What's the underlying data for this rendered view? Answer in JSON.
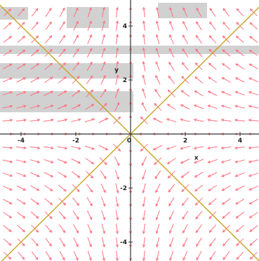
{
  "chart_data": {
    "type": "vector_field",
    "xlabel": "x",
    "ylabel": "y",
    "xlim": [
      -4.7,
      4.7
    ],
    "ylim": [
      -4.7,
      4.7
    ],
    "xticks": [
      -4,
      -2,
      0,
      2,
      4
    ],
    "yticks": [
      -4,
      -2,
      2,
      4
    ],
    "x_tick_labels": [
      "-4",
      "-2",
      "0",
      "2",
      "4"
    ],
    "y_tick_labels": [
      "-4",
      "-2",
      "2",
      "4"
    ],
    "field": {
      "u": "-x",
      "v": "y",
      "grid_step": 0.5,
      "x_range": [
        -4.5,
        4.5
      ],
      "y_range": [
        -4.5,
        4.5
      ]
    },
    "lines": [
      {
        "slope": 1,
        "color": "#c9a227"
      },
      {
        "slope": -1,
        "color": "#c9a227"
      }
    ],
    "arrow_color": "#ff6f7d",
    "grid": false
  }
}
